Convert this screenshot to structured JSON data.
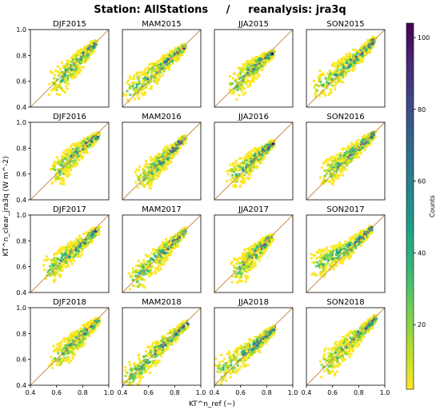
{
  "figure": {
    "title": "Station: AllStations     /     reanalysis: jra3q",
    "xlabel": "KT^n_ref (−)",
    "ylabel": "KT^n_clear_jra3q (W m^-2)",
    "colorbar": {
      "label": "Counts",
      "ticks": [
        20,
        40,
        60,
        80,
        100
      ],
      "range": [
        2,
        104
      ],
      "colormap": "viridis_r",
      "colors": [
        "#fde725",
        "#b5de2b",
        "#6ece58",
        "#35b779",
        "#1f9e89",
        "#26828e",
        "#31688e",
        "#3e4989",
        "#482878",
        "#440154"
      ]
    }
  },
  "chart_data": [
    {
      "type": "heatmap",
      "title": "DJF2015",
      "xlim": [
        0.4,
        1.0
      ],
      "ylim": [
        0.4,
        1.0
      ],
      "x": [
        0.6,
        0.7,
        0.78,
        0.84,
        0.9
      ],
      "y": [
        0.58,
        0.68,
        0.77,
        0.83,
        0.9
      ]
    },
    {
      "type": "heatmap",
      "title": "MAM2015",
      "xlim": [
        0.4,
        1.0
      ],
      "ylim": [
        0.4,
        1.0
      ],
      "x": [
        0.45,
        0.6,
        0.7,
        0.8,
        0.88
      ],
      "y": [
        0.52,
        0.62,
        0.72,
        0.8,
        0.87
      ]
    },
    {
      "type": "heatmap",
      "title": "JJA2015",
      "xlim": [
        0.4,
        1.0
      ],
      "ylim": [
        0.4,
        1.0
      ],
      "x": [
        0.55,
        0.65,
        0.72,
        0.78,
        0.85
      ],
      "y": [
        0.55,
        0.66,
        0.72,
        0.77,
        0.82
      ]
    },
    {
      "type": "heatmap",
      "title": "SON2015",
      "xlim": [
        0.4,
        1.0
      ],
      "ylim": [
        0.4,
        1.0
      ],
      "x": [
        0.5,
        0.65,
        0.75,
        0.85,
        0.92
      ],
      "y": [
        0.55,
        0.67,
        0.76,
        0.84,
        0.92
      ]
    },
    {
      "type": "heatmap",
      "title": "DJF2016",
      "xlim": [
        0.4,
        1.0
      ],
      "ylim": [
        0.4,
        1.0
      ],
      "x": [
        0.6,
        0.68,
        0.76,
        0.84,
        0.92
      ],
      "y": [
        0.6,
        0.7,
        0.77,
        0.84,
        0.9
      ]
    },
    {
      "type": "heatmap",
      "title": "MAM2016",
      "xlim": [
        0.4,
        1.0
      ],
      "ylim": [
        0.4,
        1.0
      ],
      "x": [
        0.55,
        0.65,
        0.72,
        0.8,
        0.88
      ],
      "y": [
        0.55,
        0.65,
        0.72,
        0.8,
        0.88
      ]
    },
    {
      "type": "heatmap",
      "title": "JJA2016",
      "xlim": [
        0.4,
        1.0
      ],
      "ylim": [
        0.4,
        1.0
      ],
      "x": [
        0.55,
        0.65,
        0.72,
        0.78,
        0.85
      ],
      "y": [
        0.58,
        0.66,
        0.73,
        0.78,
        0.84
      ]
    },
    {
      "type": "heatmap",
      "title": "SON2016",
      "xlim": [
        0.4,
        1.0
      ],
      "ylim": [
        0.4,
        1.0
      ],
      "x": [
        0.55,
        0.65,
        0.75,
        0.85,
        0.92
      ],
      "y": [
        0.6,
        0.68,
        0.76,
        0.85,
        0.91
      ]
    },
    {
      "type": "heatmap",
      "title": "DJF2017",
      "xlim": [
        0.4,
        1.0
      ],
      "ylim": [
        0.4,
        1.0
      ],
      "x": [
        0.55,
        0.65,
        0.75,
        0.85,
        0.92
      ],
      "y": [
        0.57,
        0.66,
        0.74,
        0.83,
        0.89
      ]
    },
    {
      "type": "heatmap",
      "title": "MAM2017",
      "xlim": [
        0.4,
        1.0
      ],
      "ylim": [
        0.4,
        1.0
      ],
      "x": [
        0.5,
        0.62,
        0.72,
        0.8,
        0.88
      ],
      "y": [
        0.5,
        0.62,
        0.72,
        0.8,
        0.88
      ]
    },
    {
      "type": "heatmap",
      "title": "JJA2017",
      "xlim": [
        0.4,
        1.0
      ],
      "ylim": [
        0.4,
        1.0
      ],
      "x": [
        0.58,
        0.65,
        0.72,
        0.78,
        0.84
      ],
      "y": [
        0.56,
        0.64,
        0.71,
        0.77,
        0.83
      ]
    },
    {
      "type": "heatmap",
      "title": "SON2017",
      "xlim": [
        0.4,
        1.0
      ],
      "ylim": [
        0.4,
        1.0
      ],
      "x": [
        0.48,
        0.6,
        0.72,
        0.82,
        0.9
      ],
      "y": [
        0.6,
        0.68,
        0.74,
        0.82,
        0.9
      ]
    },
    {
      "type": "heatmap",
      "title": "DJF2018",
      "xlim": [
        0.4,
        1.0
      ],
      "ylim": [
        0.4,
        1.0
      ],
      "x": [
        0.6,
        0.7,
        0.78,
        0.85,
        0.92
      ],
      "y": [
        0.6,
        0.7,
        0.77,
        0.84,
        0.9
      ]
    },
    {
      "type": "heatmap",
      "title": "MAM2018",
      "xlim": [
        0.4,
        1.0
      ],
      "ylim": [
        0.4,
        1.0
      ],
      "x": [
        0.45,
        0.58,
        0.7,
        0.8,
        0.9
      ],
      "y": [
        0.45,
        0.58,
        0.7,
        0.79,
        0.88
      ]
    },
    {
      "type": "heatmap",
      "title": "JJA2018",
      "xlim": [
        0.4,
        1.0
      ],
      "ylim": [
        0.4,
        1.0
      ],
      "x": [
        0.45,
        0.6,
        0.7,
        0.78,
        0.86
      ],
      "y": [
        0.5,
        0.62,
        0.7,
        0.77,
        0.84
      ]
    },
    {
      "type": "heatmap",
      "title": "SON2018",
      "xlim": [
        0.4,
        1.0
      ],
      "ylim": [
        0.4,
        1.0
      ],
      "x": [
        0.55,
        0.65,
        0.75,
        0.85,
        0.93
      ],
      "y": [
        0.55,
        0.65,
        0.75,
        0.84,
        0.92
      ]
    }
  ],
  "axes": {
    "yticks": [
      "0.4",
      "0.6",
      "0.8",
      "1.0"
    ],
    "xticks": [
      "0.4",
      "0.6",
      "0.8",
      "1.0"
    ],
    "diagonal_color": "#c8914f"
  }
}
